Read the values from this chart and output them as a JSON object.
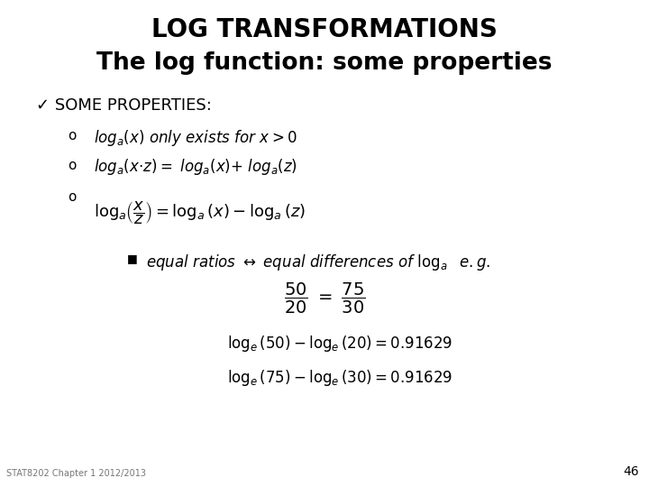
{
  "title_line1": "LOG TRANSFORMATIONS",
  "title_line2": "The log function: some properties",
  "background_color": "#ffffff",
  "text_color": "#000000",
  "footer": "STAT8202 Chapter 1 2012/2013",
  "page_number": "46",
  "title1_fontsize": 20,
  "title2_fontsize": 19,
  "body_fontsize": 12,
  "math_fontsize": 12,
  "footer_fontsize": 7,
  "pagenum_fontsize": 10
}
